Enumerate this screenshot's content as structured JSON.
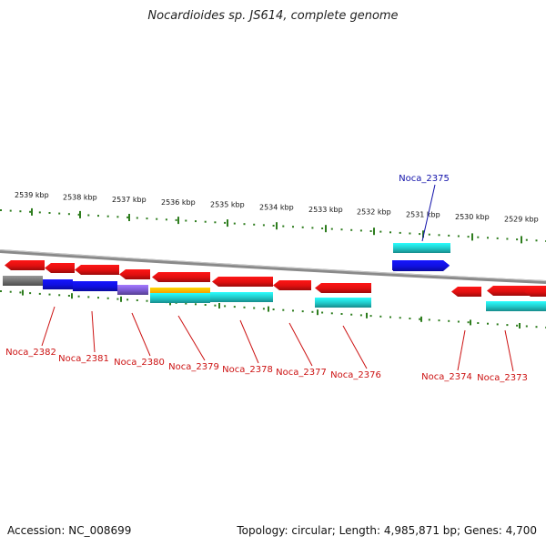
{
  "header": {
    "title": "Nocardioides sp. JS614, complete genome"
  },
  "footer": {
    "accession": "Accession: NC_008699",
    "topology": "Topology: circular; Length: 4,985,871 bp; Genes: 4,700"
  },
  "scale": {
    "labels": [
      "2539 kbp",
      "2538 kbp",
      "2537 kbp",
      "2536 kbp",
      "2535 kbp",
      "2534 kbp",
      "2533 kbp",
      "2532 kbp",
      "2531 kbp",
      "2530 kbp",
      "2529 kbp"
    ],
    "tick_color": "#2e7d1e"
  },
  "colors": {
    "red": "#e01010",
    "blue": "#1010e0",
    "cyan": "#20c8c8",
    "gray": "#707070",
    "purple": "#7a5ad0",
    "orange": "#f5a000",
    "backbone": "#8a8a8a",
    "label_red": "#cc1111",
    "label_blue": "#1111aa"
  },
  "genes": [
    {
      "id": "g2382",
      "name": "Noca_2382",
      "strand": "minus",
      "color": "red",
      "labeled": true
    },
    {
      "id": "g2381",
      "name": "Noca_2381",
      "strand": "minus",
      "color": "red",
      "labeled": true
    },
    {
      "id": "g2380",
      "name": "Noca_2380",
      "strand": "minus",
      "color": "red",
      "labeled": true
    },
    {
      "id": "g2379",
      "name": "Noca_2379",
      "strand": "minus",
      "color": "red",
      "labeled": true
    },
    {
      "id": "g2378",
      "name": "Noca_2378",
      "strand": "minus",
      "color": "red",
      "labeled": true
    },
    {
      "id": "g2377",
      "name": "Noca_2377",
      "strand": "minus",
      "color": "red",
      "labeled": true
    },
    {
      "id": "g2376",
      "name": "Noca_2376",
      "strand": "minus",
      "color": "red",
      "labeled": true
    },
    {
      "id": "g2375",
      "name": "Noca_2375",
      "strand": "plus",
      "color": "blue",
      "labeled": true
    },
    {
      "id": "g2374",
      "name": "Noca_2374",
      "strand": "minus",
      "color": "red",
      "labeled": true
    },
    {
      "id": "g2373",
      "name": "Noca_2373",
      "strand": "minus",
      "color": "red",
      "labeled": true
    }
  ],
  "features": [
    {
      "id": "f1",
      "color": "gray"
    },
    {
      "id": "f2",
      "color": "blue"
    },
    {
      "id": "f3",
      "color": "blue"
    },
    {
      "id": "f4",
      "color": "purple"
    },
    {
      "id": "f5",
      "color": "orange"
    },
    {
      "id": "f6",
      "color": "cyan"
    },
    {
      "id": "f7",
      "color": "cyan"
    },
    {
      "id": "f8",
      "color": "cyan"
    },
    {
      "id": "f9",
      "color": "cyan"
    },
    {
      "id": "f10",
      "color": "cyan"
    }
  ]
}
